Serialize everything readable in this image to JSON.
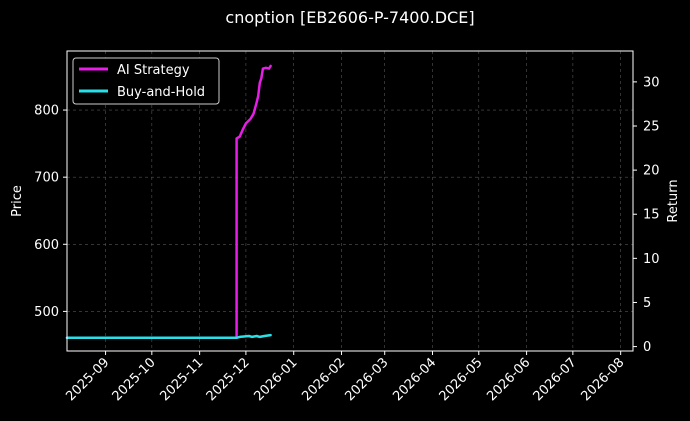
{
  "chart_data": {
    "type": "line",
    "title": "cnoption [EB2606-P-7400.DCE]",
    "ylabel": "Price",
    "y2label": "Return",
    "ylim": [
      441,
      888
    ],
    "y2lim": [
      -0.5,
      33.5
    ],
    "yticks": [
      500,
      600,
      700,
      800
    ],
    "y2ticks": [
      0,
      5,
      10,
      15,
      20,
      25,
      30
    ],
    "xlim": [
      "2025-08-07",
      "2026-08-09"
    ],
    "xticks": [
      "2025-09",
      "2025-10",
      "2025-11",
      "2025-12",
      "2026-01",
      "2026-02",
      "2026-03",
      "2026-04",
      "2026-05",
      "2026-06",
      "2026-07",
      "2026-08"
    ],
    "grid": true,
    "legend": "top-left",
    "colors": {
      "background": "#000000",
      "text": "#ffffff",
      "grid": "#555555",
      "ai": "#e61ee6",
      "bh": "#28e0e8"
    },
    "series": [
      {
        "name": "AI Strategy",
        "axis": "right",
        "color": "#e61ee6",
        "points": [
          [
            "2025-08-07",
            1.0
          ],
          [
            "2025-11-25",
            1.0
          ],
          [
            "2025-11-25",
            23.6
          ],
          [
            "2025-11-27",
            23.8
          ],
          [
            "2025-11-29",
            24.6
          ],
          [
            "2025-12-01",
            25.3
          ],
          [
            "2025-12-04",
            25.8
          ],
          [
            "2025-12-06",
            26.4
          ],
          [
            "2025-12-08",
            27.7
          ],
          [
            "2025-12-09",
            28.4
          ],
          [
            "2025-12-10",
            29.9
          ],
          [
            "2025-12-11",
            30.4
          ],
          [
            "2025-12-12",
            31.5
          ],
          [
            "2025-12-14",
            31.6
          ],
          [
            "2025-12-16",
            31.5
          ],
          [
            "2025-12-17",
            31.8
          ]
        ]
      },
      {
        "name": "Buy-and-Hold",
        "axis": "right",
        "color": "#28e0e8",
        "points": [
          [
            "2025-08-07",
            1.0
          ],
          [
            "2025-11-25",
            1.0
          ],
          [
            "2025-11-27",
            1.1
          ],
          [
            "2025-12-03",
            1.2
          ],
          [
            "2025-12-05",
            1.1
          ],
          [
            "2025-12-08",
            1.2
          ],
          [
            "2025-12-10",
            1.1
          ],
          [
            "2025-12-13",
            1.2
          ],
          [
            "2025-12-17",
            1.3
          ]
        ]
      }
    ]
  }
}
